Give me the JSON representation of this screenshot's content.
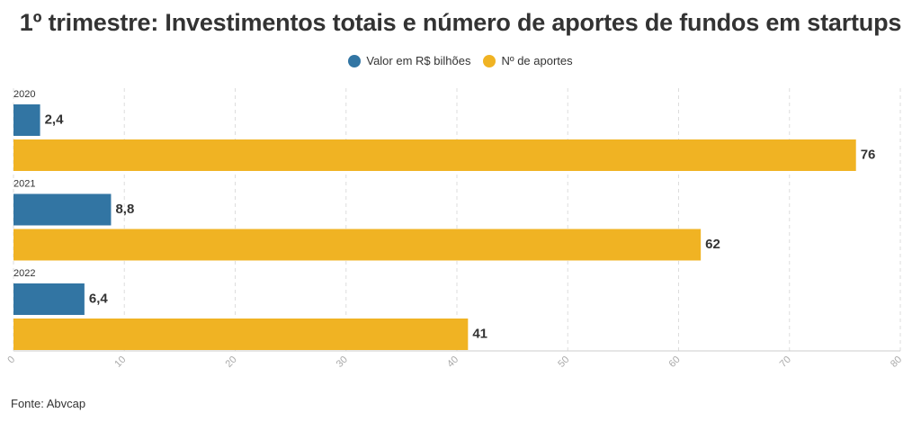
{
  "title": "1º trimestre: Investimentos totais e número de aportes de fundos em startups",
  "source": "Fonte: Abvcap",
  "colors": {
    "valor": "#3275a3",
    "aportes": "#f0b323"
  },
  "chart_data": {
    "type": "bar",
    "orientation": "horizontal",
    "categories": [
      "2020",
      "2021",
      "2022"
    ],
    "series": [
      {
        "name": "Valor em R$ bilhões",
        "values": [
          2.4,
          8.8,
          6.4
        ],
        "labels": [
          "2,4",
          "8,8",
          "6,4"
        ]
      },
      {
        "name": "Nº de aportes",
        "values": [
          76,
          62,
          41
        ],
        "labels": [
          "76",
          "62",
          "41"
        ]
      }
    ],
    "xlim": [
      0,
      80
    ],
    "xticks": [
      0,
      10,
      20,
      30,
      40,
      50,
      60,
      70,
      80
    ],
    "grid": true,
    "legend": "top-center"
  }
}
